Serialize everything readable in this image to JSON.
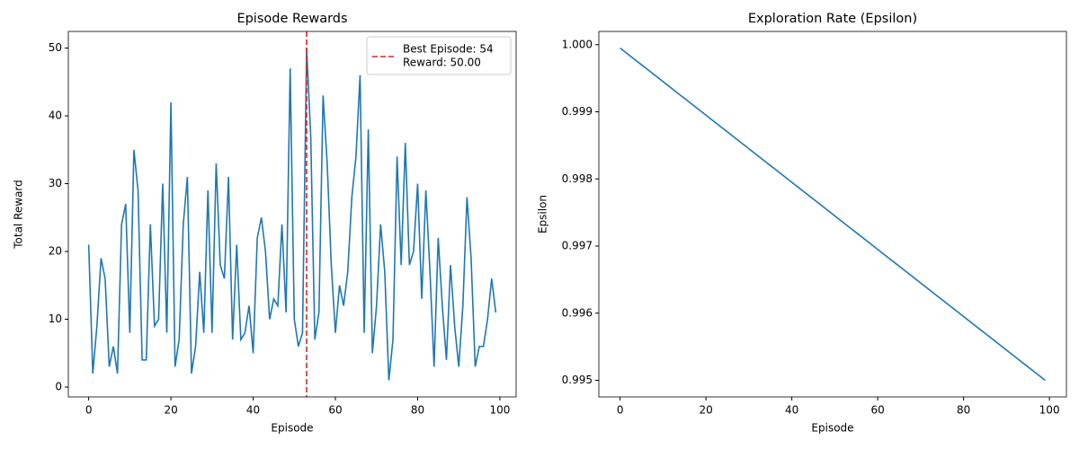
{
  "chart_data": [
    {
      "type": "line",
      "title": "Episode Rewards",
      "x_label": "Episode",
      "y_label": "Total Reward",
      "x": [
        0,
        1,
        2,
        3,
        4,
        5,
        6,
        7,
        8,
        9,
        10,
        11,
        12,
        13,
        14,
        15,
        16,
        17,
        18,
        19,
        20,
        21,
        22,
        23,
        24,
        25,
        26,
        27,
        28,
        29,
        30,
        31,
        32,
        33,
        34,
        35,
        36,
        37,
        38,
        39,
        40,
        41,
        42,
        43,
        44,
        45,
        46,
        47,
        48,
        49,
        50,
        51,
        52,
        53,
        54,
        55,
        56,
        57,
        58,
        59,
        60,
        61,
        62,
        63,
        64,
        65,
        66,
        67,
        68,
        69,
        70,
        71,
        72,
        73,
        74,
        75,
        76,
        77,
        78,
        79,
        80,
        81,
        82,
        83,
        84,
        85,
        86,
        87,
        88,
        89,
        90,
        91,
        92,
        93,
        94,
        95,
        96,
        97,
        98,
        99
      ],
      "values": [
        21,
        2,
        9,
        19,
        16,
        3,
        6,
        2,
        24,
        27,
        8,
        35,
        29,
        4,
        4,
        24,
        9,
        10,
        30,
        8,
        42,
        3,
        7,
        24,
        31,
        2,
        6,
        17,
        8,
        29,
        8,
        33,
        18,
        16,
        31,
        7,
        21,
        7,
        8,
        12,
        5,
        22,
        25,
        20,
        10,
        13,
        12,
        24,
        11,
        47,
        10,
        6,
        8,
        50,
        37,
        7,
        11,
        43,
        33,
        18,
        8,
        15,
        12,
        17,
        28,
        34,
        46,
        8,
        38,
        5,
        12,
        24,
        17,
        1,
        7,
        34,
        18,
        36,
        18,
        20,
        30,
        13,
        29,
        17,
        3,
        22,
        12,
        4,
        18,
        9,
        3,
        12,
        28,
        19,
        3,
        6,
        6,
        10,
        16,
        11
      ],
      "color": "#1f77b4",
      "xlim": [
        -4.95,
        103.95
      ],
      "xticks": [
        0,
        20,
        40,
        60,
        80,
        100
      ],
      "ylim": [
        -1.45,
        52.45
      ],
      "yticks": [
        0,
        10,
        20,
        30,
        40,
        50
      ],
      "reference_line": {
        "x": 53,
        "color": "#d62728",
        "style": "dashed",
        "label": [
          "Best Episode: 54",
          "Reward: 50.00"
        ]
      },
      "legend": "upper right"
    },
    {
      "type": "line",
      "title": "Exploration Rate (Epsilon)",
      "x_label": "Episode",
      "y_label": "Epsilon",
      "x": [
        0,
        1,
        2,
        3,
        4,
        5,
        6,
        7,
        8,
        9,
        10,
        11,
        12,
        13,
        14,
        15,
        16,
        17,
        18,
        19,
        20,
        21,
        22,
        23,
        24,
        25,
        26,
        27,
        28,
        29,
        30,
        31,
        32,
        33,
        34,
        35,
        36,
        37,
        38,
        39,
        40,
        41,
        42,
        43,
        44,
        45,
        46,
        47,
        48,
        49,
        50,
        51,
        52,
        53,
        54,
        55,
        56,
        57,
        58,
        59,
        60,
        61,
        62,
        63,
        64,
        65,
        66,
        67,
        68,
        69,
        70,
        71,
        72,
        73,
        74,
        75,
        76,
        77,
        78,
        79,
        80,
        81,
        82,
        83,
        84,
        85,
        86,
        87,
        88,
        89,
        90,
        91,
        92,
        93,
        94,
        95,
        96,
        97,
        98,
        99
      ],
      "values": [
        0.99995,
        0.9999,
        0.99985,
        0.9998,
        0.99975,
        0.9997,
        0.99965,
        0.9996,
        0.99955,
        0.9995,
        0.99945,
        0.9994,
        0.99935,
        0.9993,
        0.99925,
        0.9992,
        0.99915,
        0.9991,
        0.99905,
        0.999,
        0.99895,
        0.9989,
        0.99885,
        0.9988,
        0.99875,
        0.9987,
        0.99865,
        0.9986,
        0.99855,
        0.9985,
        0.99845,
        0.9984,
        0.99835,
        0.9983,
        0.99825,
        0.9982,
        0.99815,
        0.9981,
        0.99805,
        0.998,
        0.99795,
        0.9979,
        0.99785,
        0.9978,
        0.99775,
        0.9977,
        0.99765,
        0.9976,
        0.99755,
        0.9975,
        0.99745,
        0.9974,
        0.99735,
        0.9973,
        0.99725,
        0.9972,
        0.99715,
        0.9971,
        0.99705,
        0.997,
        0.99695,
        0.9969,
        0.99685,
        0.9968,
        0.99675,
        0.9967,
        0.99665,
        0.9966,
        0.99655,
        0.9965,
        0.99645,
        0.9964,
        0.99635,
        0.9963,
        0.99625,
        0.9962,
        0.99615,
        0.9961,
        0.99605,
        0.996,
        0.99595,
        0.9959,
        0.99585,
        0.9958,
        0.99575,
        0.9957,
        0.99565,
        0.9956,
        0.99555,
        0.9955,
        0.99545,
        0.9954,
        0.99535,
        0.9953,
        0.99525,
        0.9952,
        0.99515,
        0.9951,
        0.99505,
        0.995
      ],
      "color": "#1f77b4",
      "xlim": [
        -4.95,
        103.95
      ],
      "xticks": [
        0,
        20,
        40,
        60,
        80,
        100
      ],
      "ylim": [
        0.9947525,
        1.0001975
      ],
      "yticks": [
        0.995,
        0.996,
        0.997,
        0.998,
        0.999,
        {
          "value": 1.0,
          "label": "1.000"
        }
      ]
    }
  ]
}
